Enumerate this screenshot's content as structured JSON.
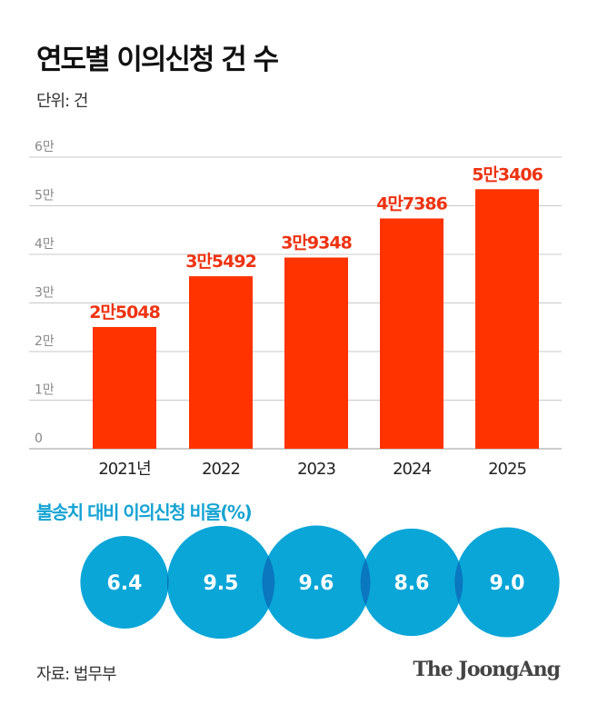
{
  "title": "연도별 이의신청 건 수",
  "unit_label": "단위: 건",
  "chart_data": [
    {
      "type": "bar",
      "title": "연도별 이의신청 건 수",
      "categories": [
        "2021년",
        "2022",
        "2023",
        "2024",
        "2025"
      ],
      "values": [
        25048,
        35492,
        39348,
        47386,
        53406
      ],
      "data_labels": [
        "2만5048",
        "3만5492",
        "3만9348",
        "4만7386",
        "5만3406"
      ],
      "ylim": [
        0,
        60000
      ],
      "yticks": [
        0,
        10000,
        20000,
        30000,
        40000,
        50000,
        60000
      ],
      "ytick_labels": [
        "0",
        "1만",
        "2만",
        "3만",
        "4만",
        "5만",
        "6만"
      ],
      "grid": true,
      "colors": {
        "bar": "#ff3300",
        "label": "#ee3311",
        "grid": "#c8c8c8"
      }
    },
    {
      "type": "bubble",
      "title": "불송치 대비 이의신청 비율(%)",
      "categories": [
        "2021년",
        "2022",
        "2023",
        "2024",
        "2025"
      ],
      "values": [
        6.4,
        9.5,
        9.6,
        8.6,
        9.0
      ],
      "data_labels": [
        "6.4",
        "9.5",
        "9.6",
        "8.6",
        "9.0"
      ],
      "colors": {
        "bubble": "#0aa6d8",
        "overlap": "#0a77bf",
        "text": "#ffffff"
      }
    }
  ],
  "source": "자료: 법무부",
  "logo": "The JoongAng"
}
